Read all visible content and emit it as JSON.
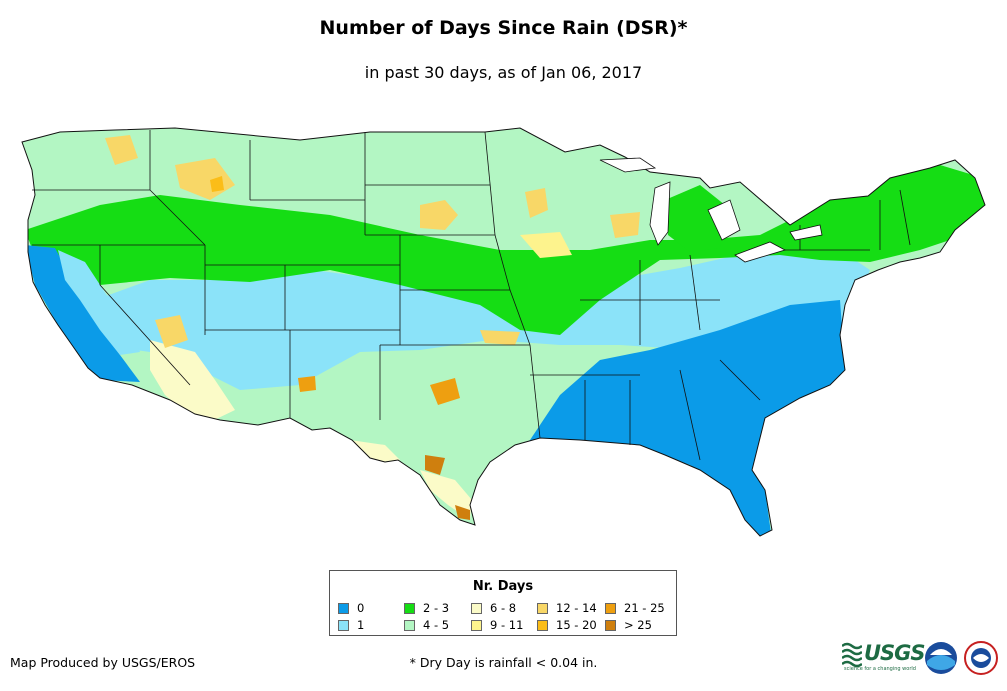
{
  "header": {
    "title": "Number of Days Since Rain (DSR)*",
    "subtitle": "in past 30 days, as of Jan 06, 2017"
  },
  "legend": {
    "title": "Nr. Days",
    "items": [
      {
        "label": "0",
        "color": "#0b9be8"
      },
      {
        "label": "1",
        "color": "#8be3f9"
      },
      {
        "label": "2 - 3",
        "color": "#15dd14"
      },
      {
        "label": "4 - 5",
        "color": "#b3f6c3"
      },
      {
        "label": "6 - 8",
        "color": "#fbfbc8"
      },
      {
        "label": "9 - 11",
        "color": "#fdf38d"
      },
      {
        "label": "12 - 14",
        "color": "#f8d767"
      },
      {
        "label": "15 - 20",
        "color": "#fbbd18"
      },
      {
        "label": "21 - 25",
        "color": "#ee9f10"
      },
      {
        "label": "> 25",
        "color": "#cf7f0e"
      }
    ]
  },
  "footer": {
    "credit": "Map Produced by USGS/EROS",
    "note": "* Dry Day is rainfall < 0.04 in."
  },
  "logos": {
    "usgs": "USGS",
    "usgs_tagline": "science for a changing world",
    "noaa": "noaa-logo",
    "nws": "national-weather-service-logo"
  }
}
